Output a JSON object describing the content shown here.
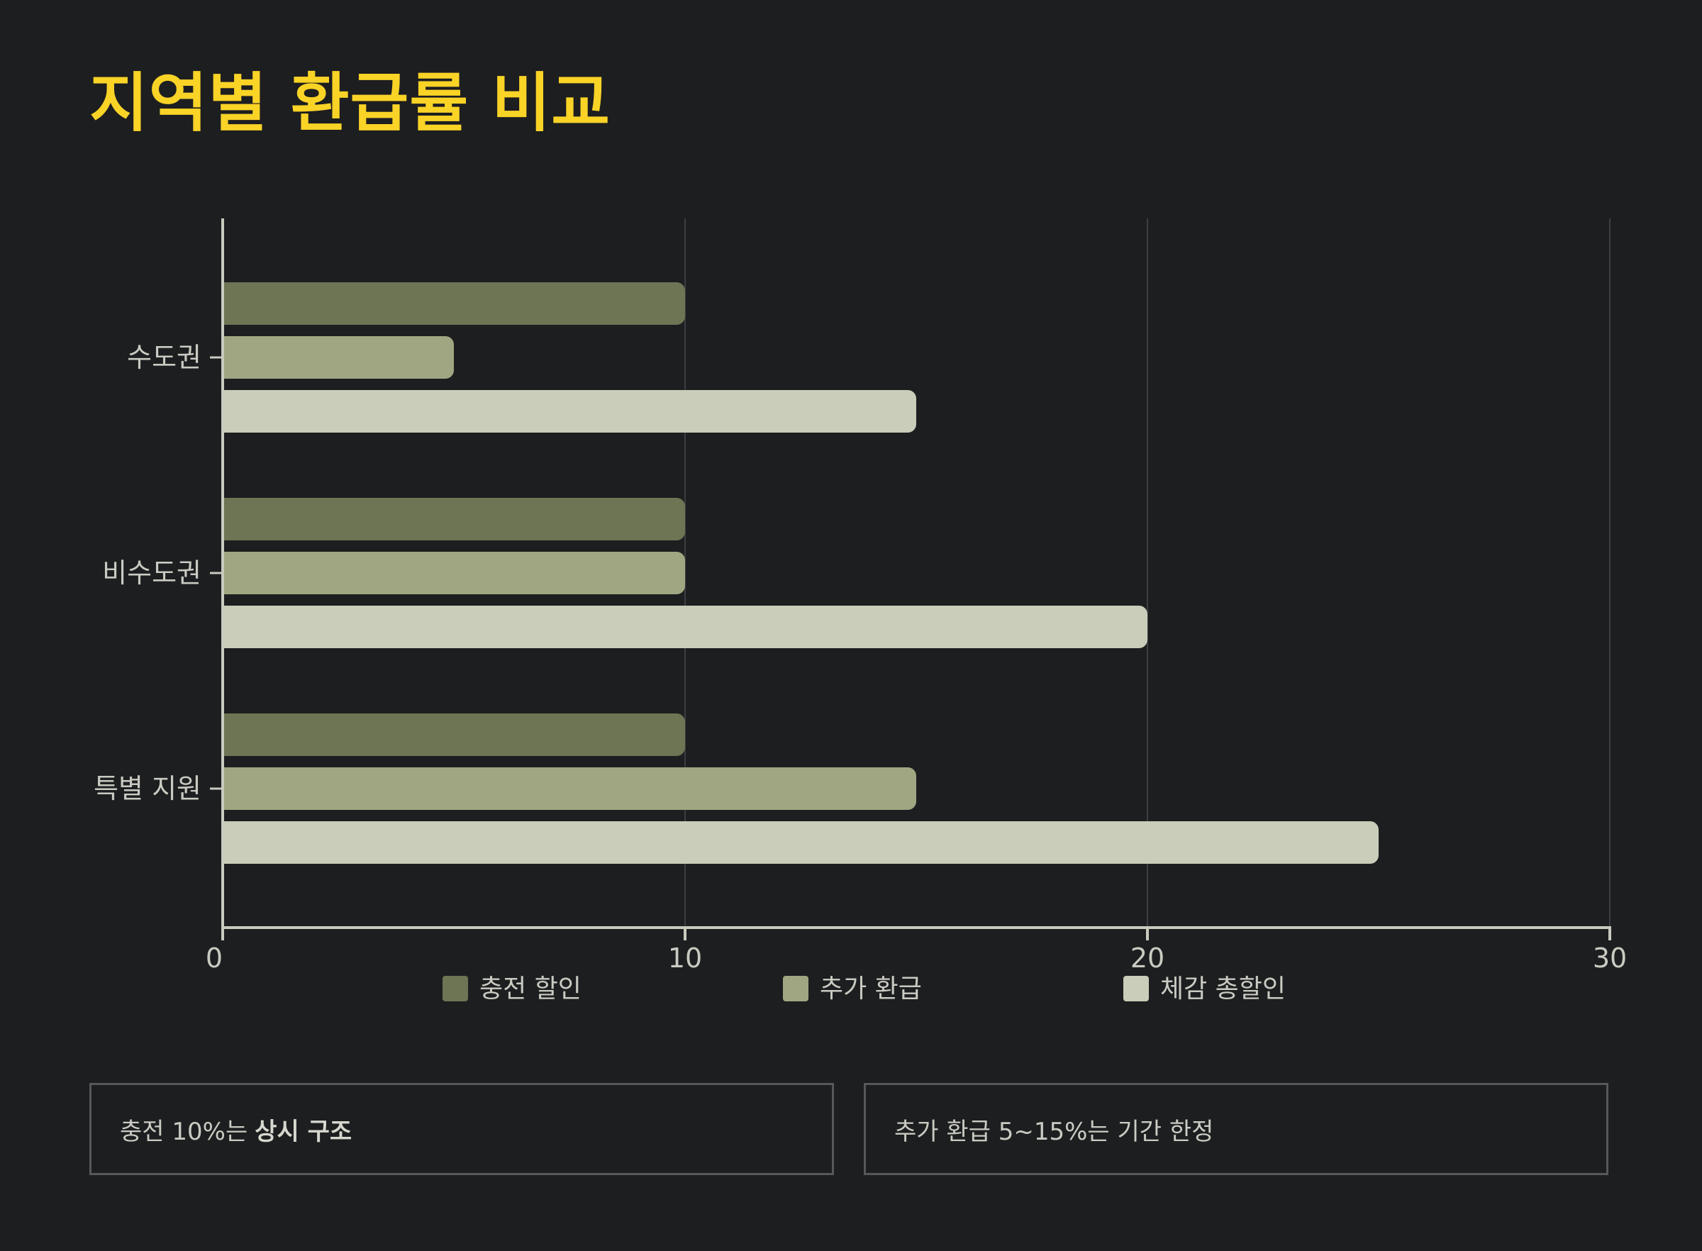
{
  "title": "지역별 환급률 비교",
  "colors": {
    "background": "#1d1e20",
    "title": "#f9d326",
    "axis": "#c9cbbf",
    "grid": "#3c3e41",
    "text": "#c9cbc2"
  },
  "chart_data": {
    "type": "bar",
    "orientation": "horizontal",
    "categories": [
      "수도권",
      "비수도권",
      "특별 지원"
    ],
    "series": [
      {
        "name": "충전 할인",
        "color": "#6d7554",
        "values": [
          10,
          10,
          10
        ]
      },
      {
        "name": "추가 환급",
        "color": "#a0a682",
        "values": [
          5,
          10,
          15
        ]
      },
      {
        "name": "체감 총할인",
        "color": "#c9cdb9",
        "values": [
          15,
          20,
          25
        ]
      }
    ],
    "xlim": [
      0,
      30
    ],
    "xticks": [
      "0",
      "10",
      "20",
      "30"
    ],
    "grid": true,
    "legend_position": "bottom"
  },
  "notes": [
    {
      "text": "충전 10%는",
      "bold": "상시 구조"
    },
    {
      "text": "추가 환급 5~15%는 기간 한정",
      "bold": ""
    }
  ]
}
